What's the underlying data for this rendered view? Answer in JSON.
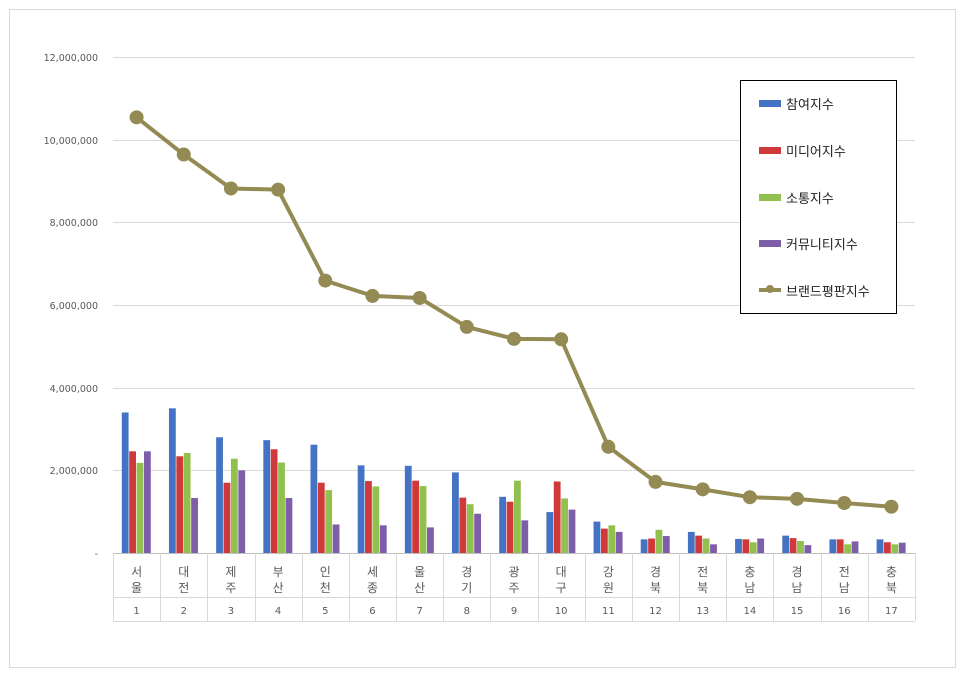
{
  "colors": {
    "series_1": "#4472c4",
    "series_2": "#d0393a",
    "series_3": "#92c04f",
    "series_4": "#7e5ea8",
    "series_5": "#948a54",
    "gridline": "#d9d9d9",
    "axis_text": "#595959"
  },
  "chart_data": {
    "type": "bar",
    "combo": "bar+line",
    "title": "",
    "xlabel": "",
    "ylabel": "",
    "ylim": [
      0,
      12000000
    ],
    "yticks": [
      "-",
      "2,000,000",
      "4,000,000",
      "6,000,000",
      "8,000,000",
      "10,000,000",
      "12,000,000"
    ],
    "ytick_values": [
      0,
      2000000,
      4000000,
      6000000,
      8000000,
      10000000,
      12000000
    ],
    "grid": true,
    "legend_position": "top-right",
    "categories": [
      "서울",
      "대전",
      "제주",
      "부산",
      "인천",
      "세종",
      "울산",
      "경기",
      "광주",
      "대구",
      "강원",
      "경북",
      "전북",
      "충남",
      "경남",
      "전남",
      "충북"
    ],
    "ranks": [
      "1",
      "2",
      "3",
      "4",
      "5",
      "6",
      "7",
      "8",
      "9",
      "10",
      "11",
      "12",
      "13",
      "14",
      "15",
      "16",
      "17"
    ],
    "series": [
      {
        "name": "참여지수",
        "kind": "bar",
        "values": [
          3400000,
          3500000,
          2800000,
          2730000,
          2620000,
          2120000,
          2110000,
          1950000,
          1360000,
          990000,
          760000,
          330000,
          510000,
          340000,
          420000,
          330000,
          330000
        ]
      },
      {
        "name": "미디어지수",
        "kind": "bar",
        "values": [
          2460000,
          2340000,
          1700000,
          2510000,
          1700000,
          1740000,
          1750000,
          1340000,
          1240000,
          1730000,
          590000,
          350000,
          420000,
          330000,
          360000,
          330000,
          260000
        ]
      },
      {
        "name": "소통지수",
        "kind": "bar",
        "values": [
          2180000,
          2420000,
          2280000,
          2190000,
          1520000,
          1610000,
          1620000,
          1180000,
          1750000,
          1320000,
          670000,
          560000,
          350000,
          260000,
          290000,
          210000,
          210000
        ]
      },
      {
        "name": "커뮤니티지수",
        "kind": "bar",
        "values": [
          2460000,
          1330000,
          2000000,
          1330000,
          690000,
          670000,
          620000,
          950000,
          790000,
          1050000,
          510000,
          410000,
          210000,
          350000,
          190000,
          280000,
          250000
        ]
      },
      {
        "name": "브랜드평판지수",
        "kind": "line",
        "values": [
          10540000,
          9640000,
          8820000,
          8790000,
          6590000,
          6220000,
          6170000,
          5470000,
          5180000,
          5170000,
          2570000,
          1720000,
          1540000,
          1350000,
          1310000,
          1210000,
          1120000
        ]
      }
    ]
  }
}
